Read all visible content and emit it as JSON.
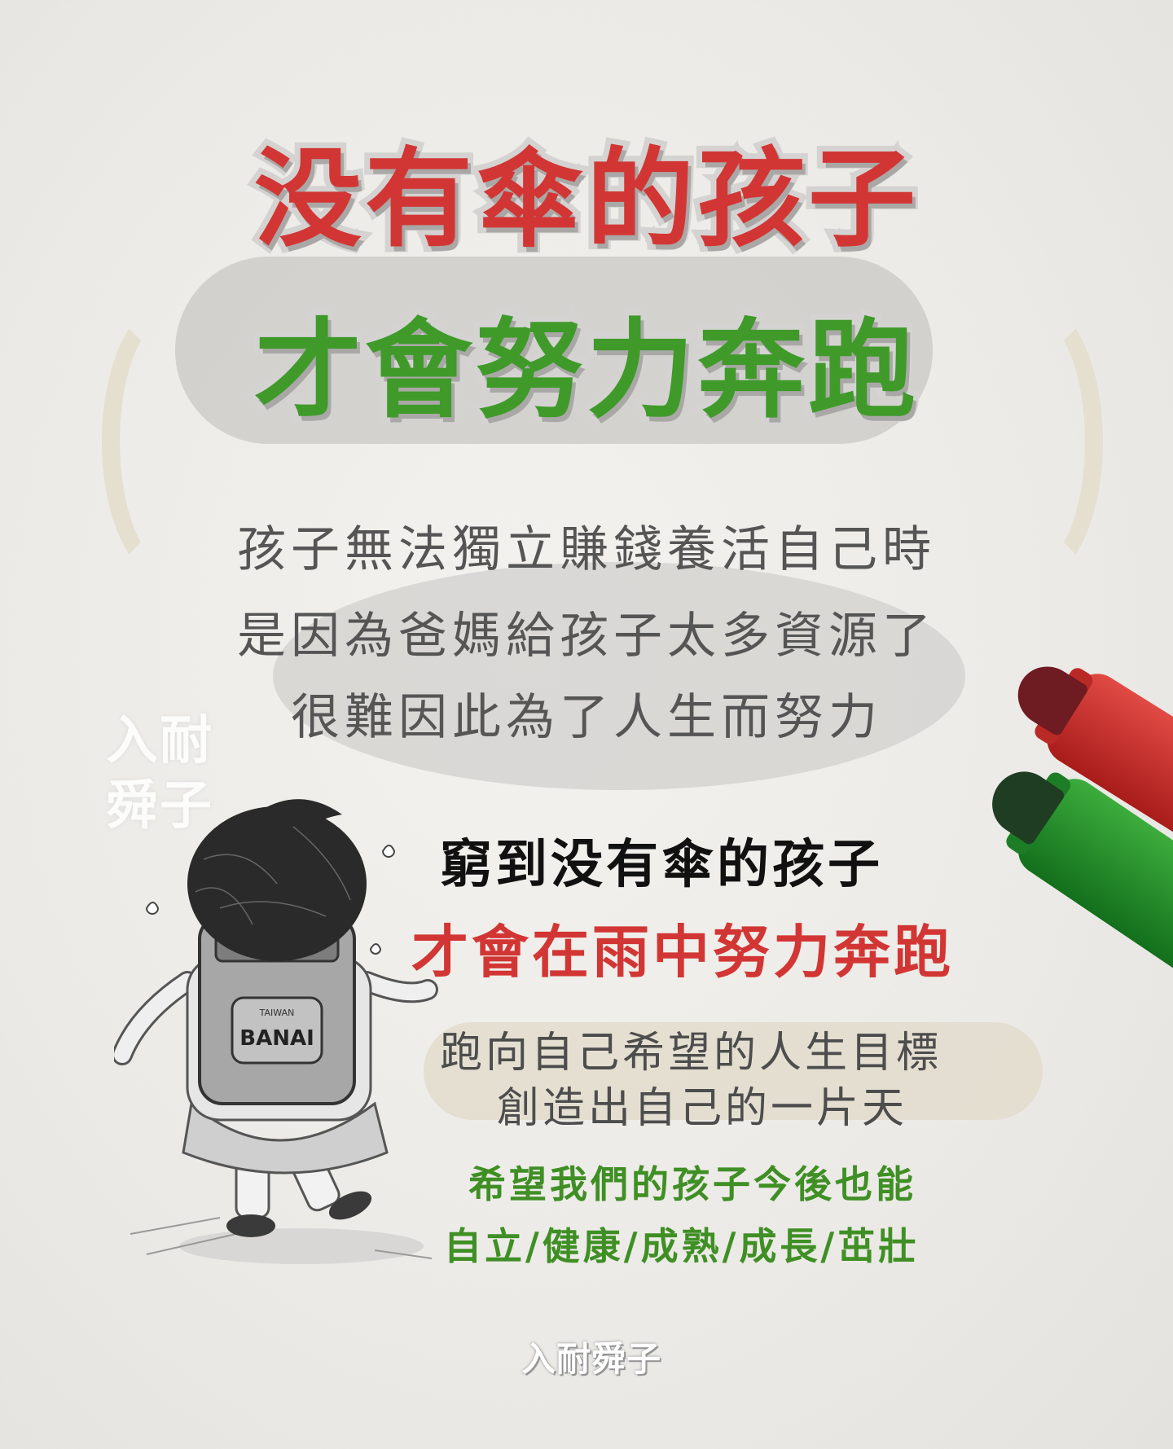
{
  "title": {
    "line1": "没有傘的孩子",
    "line2": "才會努力奔跑"
  },
  "paragraph1": [
    "孩子無法獨立賺錢養活自己時",
    "是因為爸媽給孩子太多資源了",
    "很難因此為了人生而努力"
  ],
  "punchline": {
    "line1": "窮到没有傘的孩子",
    "line2": "才會在雨中努力奔跑"
  },
  "paragraph2": [
    "跑向自己希望的人生目標",
    "創造出自己的一片天"
  ],
  "wish": {
    "line1": "希望我們的孩子今後也能",
    "line2": "自立/健康/成熟/成長/茁壯"
  },
  "watermark": {
    "line1": "入耐",
    "line2": "舜子"
  },
  "signature": "入耐舜子",
  "backpack": {
    "small_text": "TAIWAN",
    "brand": "BANAI"
  },
  "colors": {
    "title_red": "#d23634",
    "title_green": "#3f9a2a",
    "text_grey": "#555555",
    "wish_green": "#3f8f25",
    "background": "#eceae6"
  }
}
